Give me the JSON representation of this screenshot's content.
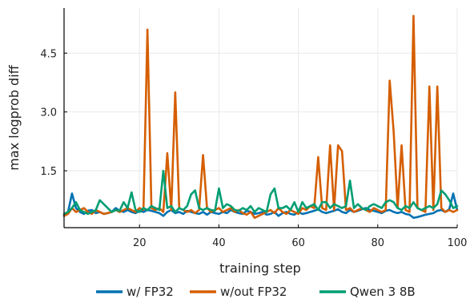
{
  "chart_data": {
    "type": "line",
    "title": "",
    "xlabel": "training step",
    "ylabel": "max logprob diff",
    "xlim": [
      1,
      100
    ],
    "ylim": [
      0.05,
      5.65
    ],
    "xticks": [
      20,
      40,
      60,
      80,
      100
    ],
    "xtick_labels": [
      "20",
      "40",
      "60",
      "80",
      "100"
    ],
    "yticks": [
      1.5,
      3.0,
      4.5
    ],
    "ytick_labels": [
      "1.5",
      "3.0",
      "4.5"
    ],
    "grid": true,
    "legend_position": "bottom",
    "x": [
      1,
      2,
      3,
      4,
      5,
      6,
      7,
      8,
      9,
      10,
      11,
      12,
      13,
      14,
      15,
      16,
      17,
      18,
      19,
      20,
      21,
      22,
      23,
      24,
      25,
      26,
      27,
      28,
      29,
      30,
      31,
      32,
      33,
      34,
      35,
      36,
      37,
      38,
      39,
      40,
      41,
      42,
      43,
      44,
      45,
      46,
      47,
      48,
      49,
      50,
      51,
      52,
      53,
      54,
      55,
      56,
      57,
      58,
      59,
      60,
      61,
      62,
      63,
      64,
      65,
      66,
      67,
      68,
      69,
      70,
      71,
      72,
      73,
      74,
      75,
      76,
      77,
      78,
      79,
      80,
      81,
      82,
      83,
      84,
      85,
      86,
      87,
      88,
      89,
      90,
      91,
      92,
      93,
      94,
      95,
      96,
      97,
      98,
      99,
      100
    ],
    "series": [
      {
        "name": "w/ FP32",
        "color": "#0072B2",
        "values": [
          0.35,
          0.45,
          0.92,
          0.55,
          0.45,
          0.4,
          0.48,
          0.5,
          0.42,
          0.45,
          0.4,
          0.42,
          0.45,
          0.55,
          0.48,
          0.45,
          0.5,
          0.45,
          0.42,
          0.48,
          0.45,
          0.5,
          0.48,
          0.45,
          0.42,
          0.35,
          0.45,
          0.5,
          0.42,
          0.45,
          0.4,
          0.48,
          0.45,
          0.42,
          0.4,
          0.45,
          0.38,
          0.45,
          0.42,
          0.4,
          0.45,
          0.42,
          0.5,
          0.45,
          0.42,
          0.4,
          0.48,
          0.45,
          0.4,
          0.42,
          0.45,
          0.38,
          0.4,
          0.45,
          0.35,
          0.42,
          0.45,
          0.4,
          0.38,
          0.45,
          0.4,
          0.42,
          0.45,
          0.48,
          0.52,
          0.45,
          0.42,
          0.45,
          0.48,
          0.52,
          0.45,
          0.42,
          0.5,
          0.45,
          0.48,
          0.52,
          0.55,
          0.5,
          0.48,
          0.45,
          0.42,
          0.48,
          0.5,
          0.45,
          0.42,
          0.45,
          0.4,
          0.38,
          0.3,
          0.32,
          0.35,
          0.38,
          0.4,
          0.42,
          0.48,
          0.5,
          0.45,
          0.52,
          0.92,
          0.5
        ]
      },
      {
        "name": "w/out FP32",
        "color": "#D55E00",
        "values": [
          0.35,
          0.4,
          0.55,
          0.45,
          0.5,
          0.55,
          0.45,
          0.4,
          0.5,
          0.45,
          0.4,
          0.42,
          0.45,
          0.5,
          0.45,
          0.5,
          0.55,
          0.5,
          0.45,
          0.55,
          0.5,
          5.1,
          0.55,
          0.5,
          0.55,
          0.45,
          1.95,
          0.5,
          3.5,
          0.55,
          0.5,
          0.45,
          0.5,
          0.42,
          0.5,
          1.9,
          0.55,
          0.45,
          0.5,
          0.55,
          0.45,
          0.5,
          0.55,
          0.45,
          0.5,
          0.42,
          0.38,
          0.45,
          0.3,
          0.35,
          0.4,
          0.45,
          0.5,
          0.42,
          0.55,
          0.45,
          0.4,
          0.5,
          0.45,
          0.4,
          0.55,
          0.5,
          0.6,
          0.55,
          1.85,
          0.55,
          0.5,
          2.15,
          0.5,
          2.15,
          2.0,
          0.5,
          0.55,
          0.45,
          0.5,
          0.55,
          0.5,
          0.45,
          0.55,
          0.5,
          0.45,
          0.5,
          3.8,
          2.5,
          0.55,
          2.15,
          0.5,
          0.45,
          5.45,
          0.55,
          0.5,
          0.45,
          3.65,
          0.5,
          3.65,
          0.55,
          0.45,
          0.5,
          0.45,
          0.5
        ]
      },
      {
        "name": "Qwen 3 8B",
        "color": "#009E73",
        "values": [
          0.4,
          0.45,
          0.55,
          0.7,
          0.5,
          0.45,
          0.4,
          0.45,
          0.5,
          0.75,
          0.65,
          0.55,
          0.45,
          0.5,
          0.48,
          0.7,
          0.55,
          0.95,
          0.5,
          0.45,
          0.55,
          0.5,
          0.6,
          0.55,
          0.5,
          1.5,
          0.55,
          0.6,
          0.45,
          0.55,
          0.5,
          0.6,
          0.9,
          1.0,
          0.55,
          0.5,
          0.55,
          0.5,
          0.48,
          1.05,
          0.55,
          0.65,
          0.6,
          0.5,
          0.48,
          0.55,
          0.5,
          0.6,
          0.45,
          0.55,
          0.5,
          0.45,
          0.9,
          1.05,
          0.55,
          0.55,
          0.6,
          0.5,
          0.7,
          0.45,
          0.7,
          0.55,
          0.6,
          0.65,
          0.5,
          0.7,
          0.7,
          0.55,
          0.65,
          0.6,
          0.55,
          0.6,
          1.25,
          0.55,
          0.65,
          0.55,
          0.5,
          0.6,
          0.65,
          0.6,
          0.55,
          0.7,
          0.75,
          0.7,
          0.55,
          0.5,
          0.6,
          0.55,
          0.7,
          0.55,
          0.5,
          0.55,
          0.6,
          0.55,
          0.65,
          1.0,
          0.9,
          0.75,
          0.55,
          0.6
        ]
      }
    ]
  }
}
